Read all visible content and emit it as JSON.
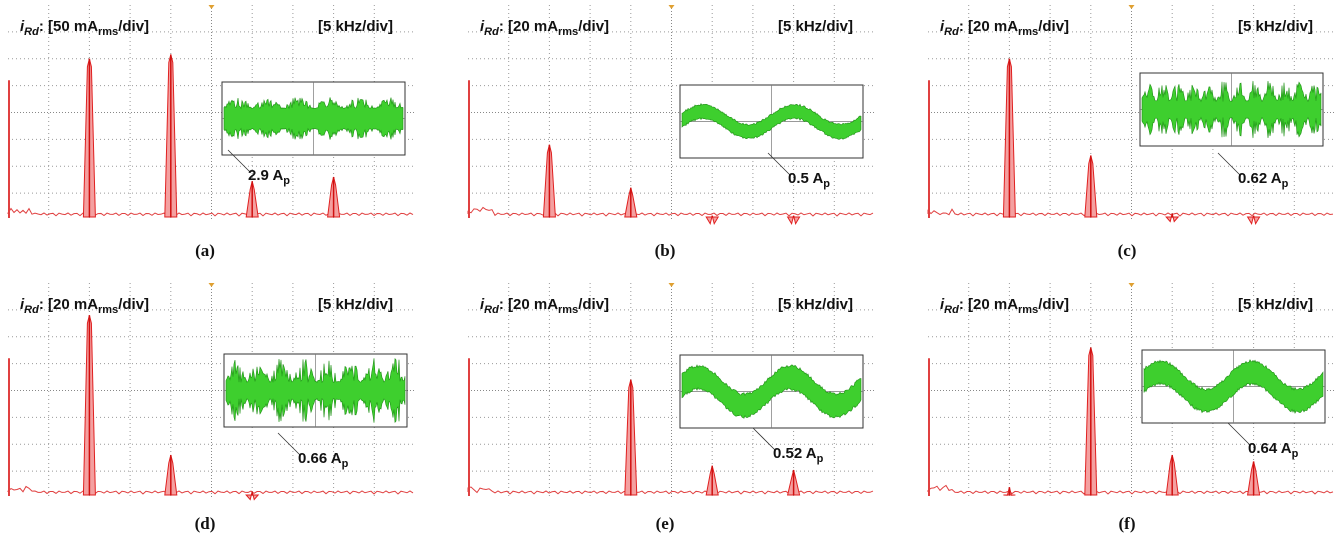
{
  "panels": [
    {
      "caption": "(a)",
      "signal": "i",
      "signal_sub": "Rd",
      "scale": ": [50 mA",
      "scale_sub": "rms",
      "scale_end": "/div]",
      "freq_scale": "[5 kHz/div]",
      "amplitude": "2.9 A",
      "amplitude_sub": "p"
    },
    {
      "caption": "(b)",
      "signal": "i",
      "signal_sub": "Rd",
      "scale": ": [20 mA",
      "scale_sub": "rms",
      "scale_end": "/div]",
      "freq_scale": "[5 kHz/div]",
      "amplitude": "0.5 A",
      "amplitude_sub": "p"
    },
    {
      "caption": "(c)",
      "signal": "i",
      "signal_sub": "Rd",
      "scale": ": [20 mA",
      "scale_sub": "rms",
      "scale_end": "/div]",
      "freq_scale": "[5 kHz/div]",
      "amplitude": "0.62 A",
      "amplitude_sub": "p"
    },
    {
      "caption": "(d)",
      "signal": "i",
      "signal_sub": "Rd",
      "scale": ": [20 mA",
      "scale_sub": "rms",
      "scale_end": "/div]",
      "freq_scale": "[5 kHz/div]",
      "amplitude": "0.66 A",
      "amplitude_sub": "p"
    },
    {
      "caption": "(e)",
      "signal": "i",
      "signal_sub": "Rd",
      "scale": ": [20 mA",
      "scale_sub": "rms",
      "scale_end": "/div]",
      "freq_scale": "[5 kHz/div]",
      "amplitude": "0.52 A",
      "amplitude_sub": "p"
    },
    {
      "caption": "(f)",
      "signal": "i",
      "signal_sub": "Rd",
      "scale": ": [20 mA",
      "scale_sub": "rms",
      "scale_end": "/div]",
      "freq_scale": "[5 kHz/div]",
      "amplitude": "0.64 A",
      "amplitude_sub": "p"
    }
  ]
}
